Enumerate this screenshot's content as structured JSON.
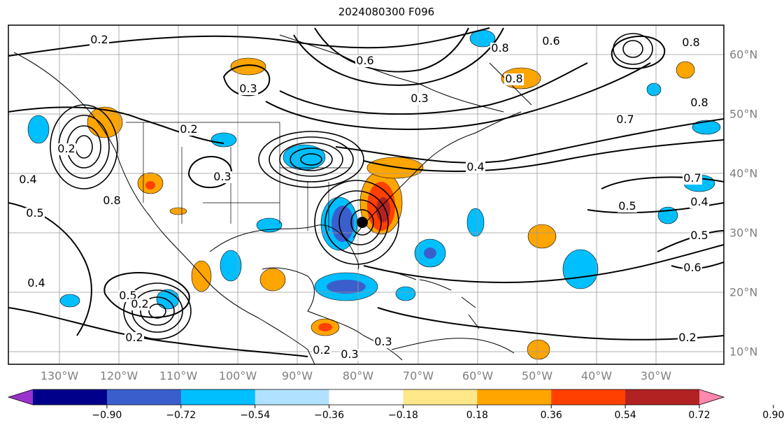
{
  "title": "2024080300 F096",
  "map": {
    "lon_labels": [
      "130°W",
      "120°W",
      "110°W",
      "100°W",
      "90°W",
      "80°W",
      "70°W",
      "60°W",
      "50°W",
      "40°W",
      "30°W"
    ],
    "lat_labels": [
      "60°N",
      "50°N",
      "40°N",
      "30°N",
      "20°N",
      "10°N"
    ],
    "contour_labels": [
      "0.2",
      "0.6",
      "0.8",
      "0.6",
      "0.8",
      "0.3",
      "0.3",
      "0.8",
      "0.7",
      "0.4",
      "0.2",
      "0.8",
      "0.3",
      "0.4",
      "0.5",
      "0.7",
      "0.4",
      "0.5",
      "0.6",
      "0.5",
      "0.3",
      "0.2",
      "0.2",
      "0.4",
      "0.2",
      "0.3",
      "0.2",
      "0.2",
      "0.5",
      "0.8"
    ],
    "colors": {
      "coast": "#000000",
      "grid": "#999999",
      "contour": "#000000"
    }
  },
  "colorbar": {
    "ticks": [
      "−0.90",
      "−0.72",
      "−0.54",
      "−0.36",
      "−0.18",
      "0.18",
      "0.36",
      "0.54",
      "0.72",
      "0.90"
    ],
    "colors": [
      "#9932cc",
      "#00008b",
      "#3a5fcd",
      "#00bfff",
      "#b0e2ff",
      "#ffffff",
      "#ffe88a",
      "#ffa500",
      "#ff4000",
      "#b22222",
      "#ff88b0"
    ]
  }
}
